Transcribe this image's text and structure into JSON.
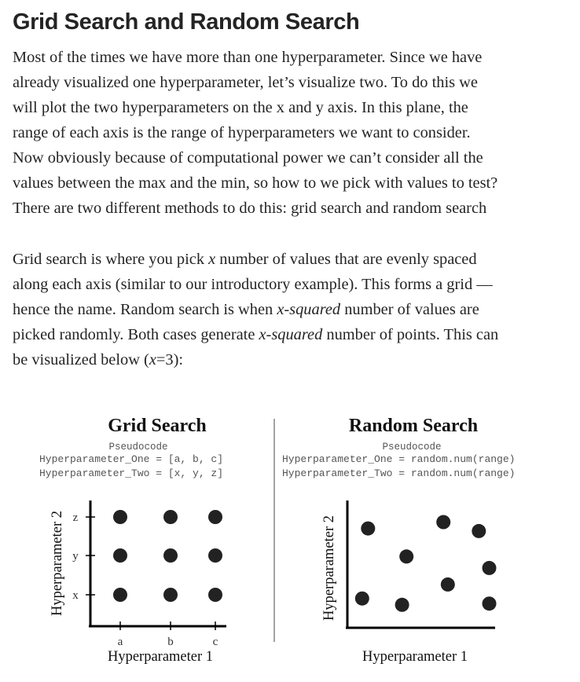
{
  "heading": "Grid Search and Random Search",
  "paragraph1": {
    "lines": [
      "Most of the times we have more than one hyperparameter. Since we have",
      "already visualized one hyperparameter, let’s visualize two. To do this we",
      "will plot the two hyperparameters on the x and y axis. In this plane, the",
      "range of each axis is the range of hyperparameters we want to consider.",
      "Now obviously because of computational power we can’t consider all the",
      "values between the max and the min, so how to we pick with values to test?",
      "There are two different methods to do this: grid search and random search"
    ]
  },
  "paragraph2": {
    "l1_a": "Grid search is where you pick ",
    "l1_em": "x",
    "l1_b": " number of values that are evenly spaced",
    "l2": "along each axis (similar to our introductory example). This forms a grid —",
    "l3_a": "hence the name. Random search is when ",
    "l3_em": "x-squared",
    "l3_b": " number of values are",
    "l4_a": "picked randomly. Both cases generate ",
    "l4_em": "x-squared",
    "l4_b": " number of points. This can",
    "l5_a": "be visualized below (",
    "l5_em": "x",
    "l5_b": "=3):"
  },
  "figure": {
    "grid": {
      "title": "Grid Search",
      "pseudocode_label": "Pseudocode",
      "code_line1": "Hyperparameter_One = [a, b, c]",
      "code_line2": "Hyperparameter_Two = [x, y, z]",
      "xlabel": "Hyperparameter 1",
      "ylabel": "Hyperparameter 2",
      "x_ticks": [
        "a",
        "b",
        "c"
      ],
      "y_ticks": [
        "x",
        "y",
        "z"
      ],
      "points": [
        {
          "x": 1,
          "y": 1
        },
        {
          "x": 2,
          "y": 1
        },
        {
          "x": 3,
          "y": 1
        },
        {
          "x": 1,
          "y": 2
        },
        {
          "x": 2,
          "y": 2
        },
        {
          "x": 3,
          "y": 2
        },
        {
          "x": 1,
          "y": 3
        },
        {
          "x": 2,
          "y": 3
        },
        {
          "x": 3,
          "y": 3
        }
      ]
    },
    "random": {
      "title": "Random Search",
      "pseudocode_label": "Pseudocode",
      "code_line1": "Hyperparameter_One = random.num(range)",
      "code_line2": "Hyperparameter_Two = random.num(range)",
      "xlabel": "Hyperparameter 1",
      "ylabel": "Hyperparameter 2",
      "points": [
        {
          "x": 0.14,
          "y": 0.78
        },
        {
          "x": 0.65,
          "y": 0.83
        },
        {
          "x": 0.89,
          "y": 0.76
        },
        {
          "x": 0.4,
          "y": 0.56
        },
        {
          "x": 0.96,
          "y": 0.47
        },
        {
          "x": 0.68,
          "y": 0.34
        },
        {
          "x": 0.1,
          "y": 0.23
        },
        {
          "x": 0.37,
          "y": 0.18
        },
        {
          "x": 0.96,
          "y": 0.19
        }
      ]
    }
  }
}
